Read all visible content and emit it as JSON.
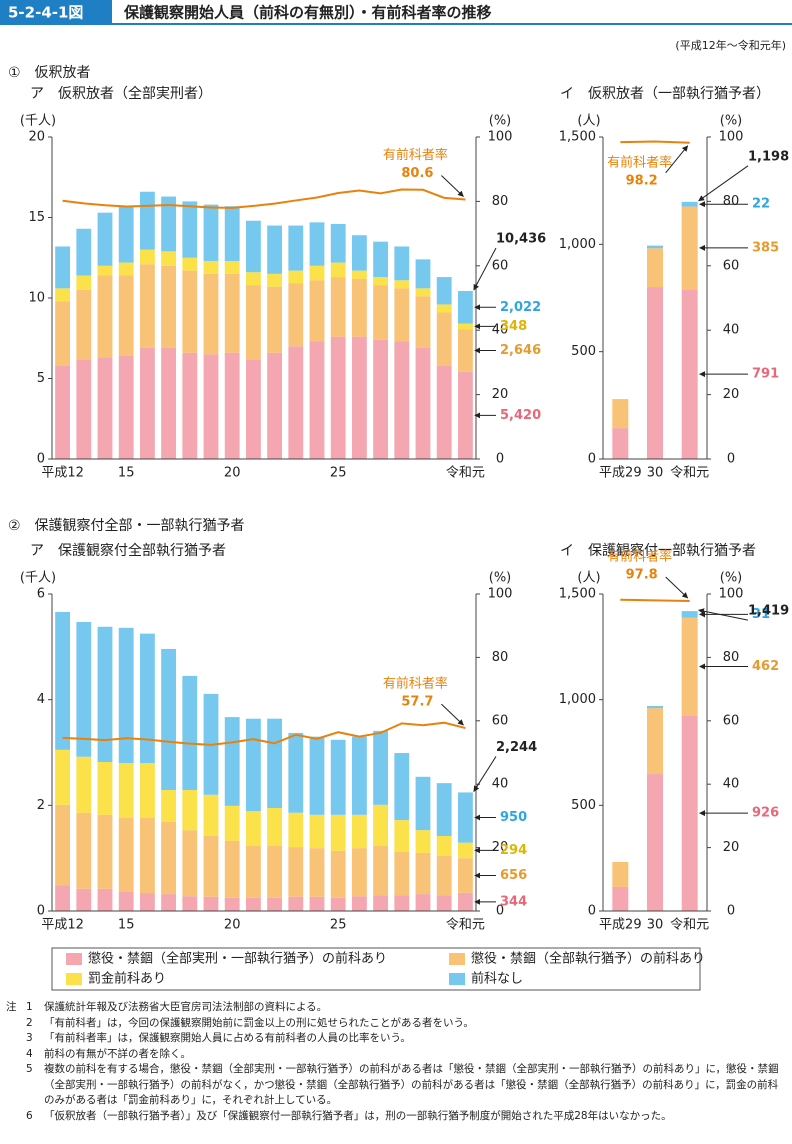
{
  "header": {
    "figure_number": "5-2-4-1図",
    "title": "保護観察開始人員（前科の有無別）・有前科者率の推移",
    "period": "(平成12年～令和元年)"
  },
  "sections": [
    "①　仮釈放者",
    "②　保護観察付全部・一部執行猶予者"
  ],
  "chart_data": [
    {
      "type": "bar",
      "stacked": true,
      "title": "ア　仮釈放者（全部実刑者）",
      "ylabel": "(千人)",
      "y2label": "(%)",
      "categories": [
        "平成12",
        null,
        null,
        "15",
        null,
        null,
        null,
        null,
        "20",
        null,
        null,
        null,
        null,
        "25",
        null,
        null,
        null,
        null,
        null,
        "令和元"
      ],
      "ylim": [
        0,
        20
      ],
      "yticks": [
        0,
        5,
        10,
        15,
        20
      ],
      "y2lim": [
        0,
        100
      ],
      "y2ticks": [
        0,
        20,
        40,
        60,
        80,
        100
      ],
      "data_labels": "last",
      "series": [
        {
          "name": "懲役・禁錮（全部実刑・一部執行猶予）の前科あり",
          "color": "#f4a7b0",
          "label_color": "#e8687a",
          "values": [
            5.8,
            6.2,
            6.3,
            6.4,
            6.9,
            6.9,
            6.6,
            6.5,
            6.6,
            6.2,
            6.6,
            7.0,
            7.3,
            7.6,
            7.6,
            7.4,
            7.3,
            6.9,
            5.8,
            5.42
          ],
          "value_labels": [
            null,
            null,
            null,
            null,
            null,
            null,
            null,
            null,
            null,
            null,
            null,
            null,
            null,
            null,
            null,
            null,
            null,
            null,
            null,
            "5,420"
          ]
        },
        {
          "name": "懲役・禁錮（全部執行猶予）の前科あり",
          "color": "#f8c277",
          "label_color": "#e89a2c",
          "values": [
            4.0,
            4.3,
            5.1,
            5.0,
            5.2,
            5.1,
            5.1,
            5.0,
            4.9,
            4.6,
            4.1,
            3.9,
            3.8,
            3.7,
            3.6,
            3.4,
            3.3,
            3.2,
            3.3,
            2.646
          ],
          "value_labels": [
            null,
            null,
            null,
            null,
            null,
            null,
            null,
            null,
            null,
            null,
            null,
            null,
            null,
            null,
            null,
            null,
            null,
            null,
            null,
            "2,646"
          ]
        },
        {
          "name": "罰金前科あり",
          "color": "#fbe14a",
          "label_color": "#e0b400",
          "values": [
            0.8,
            0.9,
            0.6,
            0.8,
            0.9,
            0.9,
            0.8,
            0.8,
            0.8,
            0.8,
            0.8,
            0.8,
            0.9,
            0.9,
            0.5,
            0.5,
            0.5,
            0.5,
            0.5,
            0.348
          ],
          "value_labels": [
            null,
            null,
            null,
            null,
            null,
            null,
            null,
            null,
            null,
            null,
            null,
            null,
            null,
            null,
            null,
            null,
            null,
            null,
            null,
            "348"
          ]
        },
        {
          "name": "前科なし",
          "color": "#77c8ee",
          "label_color": "#2fa6e0",
          "values": [
            2.6,
            2.9,
            3.3,
            3.5,
            3.6,
            3.4,
            3.5,
            3.5,
            3.4,
            3.2,
            3.0,
            2.8,
            2.7,
            2.4,
            2.2,
            2.2,
            2.1,
            1.8,
            1.7,
            2.022
          ],
          "value_labels": [
            null,
            null,
            null,
            null,
            null,
            null,
            null,
            null,
            null,
            null,
            null,
            null,
            null,
            null,
            null,
            null,
            null,
            null,
            null,
            "2,022"
          ]
        },
        {
          "name": "有前科者率",
          "type": "line",
          "axis": "y2",
          "color": "#e8820c",
          "values": [
            80.2,
            79.4,
            78.8,
            78.4,
            78.6,
            78.9,
            78.5,
            78.1,
            78.0,
            78.6,
            79.3,
            80.3,
            81.2,
            82.6,
            83.4,
            82.5,
            83.7,
            83.6,
            81.1,
            80.6
          ]
        }
      ],
      "total": {
        "value": 10.436,
        "label": "10,436"
      }
    },
    {
      "type": "bar",
      "stacked": true,
      "title": "イ　仮釈放者（一部執行猶予者）",
      "ylabel": "(人)",
      "y2label": "(%)",
      "categories": [
        "平成29",
        "30",
        "令和元"
      ],
      "ylim": [
        0,
        1500
      ],
      "yticks": [
        0,
        500,
        {
          "value": 1000,
          "label": "1,000"
        },
        {
          "value": 1500,
          "label": "1,500"
        }
      ],
      "y2lim": [
        0,
        100
      ],
      "y2ticks": [
        0,
        20,
        40,
        60,
        80,
        100
      ],
      "data_labels": "last",
      "series": [
        {
          "name": "懲役・禁錮（全部実刑・一部執行猶予）の前科あり",
          "color": "#f4a7b0",
          "label_color": "#e8687a",
          "values": [
            144,
            801,
            791
          ]
        },
        {
          "name": "懲役・禁錮（全部執行猶予）の前科あり",
          "color": "#f8c277",
          "label_color": "#e89a2c",
          "values": [
            131,
            181,
            385
          ]
        },
        {
          "name": "罰金前科あり",
          "color": "#fbe14a",
          "label_color": "#e0b400",
          "values": [
            0,
            0,
            0
          ]
        },
        {
          "name": "前科なし",
          "color": "#77c8ee",
          "label_color": "#2fa6e0",
          "values": [
            3,
            12,
            22
          ]
        },
        {
          "name": "有前科者率",
          "type": "line",
          "axis": "y2",
          "color": "#e8820c",
          "values": [
            98.4,
            98.6,
            98.2
          ]
        }
      ],
      "total": {
        "value": 1198,
        "label": "1,198"
      }
    },
    {
      "type": "bar",
      "stacked": true,
      "title": "ア　保護観察付全部執行猶予者",
      "ylabel": "(千人)",
      "y2label": "(%)",
      "categories": [
        "平成12",
        null,
        null,
        "15",
        null,
        null,
        null,
        null,
        "20",
        null,
        null,
        null,
        null,
        "25",
        null,
        null,
        null,
        null,
        null,
        "令和元"
      ],
      "ylim": [
        0,
        6
      ],
      "yticks": [
        0,
        2,
        4,
        6
      ],
      "y2lim": [
        0,
        100
      ],
      "y2ticks": [
        0,
        20,
        40,
        60,
        80,
        100
      ],
      "data_labels": "last",
      "series": [
        {
          "name": "懲役・禁錮（全部実刑・一部執行猶予）の前科あり",
          "color": "#f4a7b0",
          "label_color": "#e8687a",
          "values": [
            0.49,
            0.42,
            0.42,
            0.36,
            0.34,
            0.32,
            0.28,
            0.27,
            0.25,
            0.25,
            0.25,
            0.27,
            0.27,
            0.25,
            0.28,
            0.3,
            0.3,
            0.32,
            0.3,
            0.344
          ],
          "value_labels": [
            null,
            null,
            null,
            null,
            null,
            null,
            null,
            null,
            null,
            null,
            null,
            null,
            null,
            null,
            null,
            null,
            null,
            null,
            null,
            "344"
          ]
        },
        {
          "name": "懲役・禁錮（全部執行猶予）の前科あり",
          "color": "#f8c277",
          "label_color": "#e89a2c",
          "values": [
            1.52,
            1.44,
            1.4,
            1.4,
            1.42,
            1.37,
            1.25,
            1.15,
            1.08,
            0.98,
            0.98,
            0.94,
            0.92,
            0.89,
            0.91,
            0.93,
            0.82,
            0.78,
            0.74,
            0.656
          ],
          "value_labels": [
            null,
            null,
            null,
            null,
            null,
            null,
            null,
            null,
            null,
            null,
            null,
            null,
            null,
            null,
            null,
            null,
            null,
            null,
            null,
            "656"
          ]
        },
        {
          "name": "罰金前科あり",
          "color": "#fbe14a",
          "label_color": "#e0b400",
          "values": [
            1.04,
            1.06,
            1.0,
            1.04,
            1.04,
            0.6,
            0.76,
            0.78,
            0.66,
            0.66,
            0.72,
            0.65,
            0.63,
            0.68,
            0.63,
            0.78,
            0.6,
            0.43,
            0.38,
            0.294
          ],
          "value_labels": [
            null,
            null,
            null,
            null,
            null,
            null,
            null,
            null,
            null,
            null,
            null,
            null,
            null,
            null,
            null,
            null,
            null,
            null,
            null,
            "294"
          ]
        },
        {
          "name": "前科なし",
          "color": "#77c8ee",
          "label_color": "#2fa6e0",
          "values": [
            2.61,
            2.55,
            2.56,
            2.56,
            2.45,
            2.67,
            2.16,
            1.91,
            1.68,
            1.75,
            1.69,
            1.51,
            1.48,
            1.42,
            1.48,
            1.4,
            1.27,
            1.01,
            1.0,
            0.95
          ],
          "value_labels": [
            null,
            null,
            null,
            null,
            null,
            null,
            null,
            null,
            null,
            null,
            null,
            null,
            null,
            null,
            null,
            null,
            null,
            null,
            null,
            "950"
          ]
        },
        {
          "name": "有前科者率",
          "type": "line",
          "axis": "y2",
          "color": "#e8820c",
          "values": [
            54.6,
            54.3,
            53.9,
            54.5,
            54.1,
            53.4,
            52.8,
            52.4,
            53.2,
            54.2,
            52.9,
            55.6,
            54.3,
            56.4,
            55.0,
            56.2,
            59.2,
            58.6,
            59.4,
            57.7
          ]
        }
      ],
      "total": {
        "value": 2.244,
        "label": "2,244"
      }
    },
    {
      "type": "bar",
      "stacked": true,
      "title": "イ　保護観察付一部執行猶予者",
      "ylabel": "(人)",
      "y2label": "(%)",
      "categories": [
        "平成29",
        "30",
        "令和元"
      ],
      "ylim": [
        0,
        1500
      ],
      "yticks": [
        0,
        500,
        {
          "value": 1000,
          "label": "1,000"
        },
        {
          "value": 1500,
          "label": "1,500"
        }
      ],
      "y2lim": [
        0,
        100
      ],
      "y2ticks": [
        0,
        20,
        40,
        60,
        80,
        100
      ],
      "data_labels": "last",
      "series": [
        {
          "name": "懲役・禁錮（全部実刑・一部執行猶予）の前科あり",
          "color": "#f4a7b0",
          "label_color": "#e8687a",
          "values": [
            114,
            648,
            926
          ]
        },
        {
          "name": "懲役・禁錮（全部執行猶予）の前科あり",
          "color": "#f8c277",
          "label_color": "#e89a2c",
          "values": [
            118,
            312,
            462
          ]
        },
        {
          "name": "罰金前科あり",
          "color": "#fbe14a",
          "label_color": "#e0b400",
          "values": [
            0,
            0,
            0
          ]
        },
        {
          "name": "前科なし",
          "color": "#77c8ee",
          "label_color": "#2fa6e0",
          "values": [
            0,
            10,
            31
          ]
        },
        {
          "name": "有前科者率",
          "type": "line",
          "axis": "y2",
          "color": "#e8820c",
          "values": [
            98.2,
            98.0,
            97.8
          ]
        }
      ],
      "total": {
        "value": 1419,
        "label": "1,419"
      }
    }
  ],
  "notes": {
    "label": "注",
    "items": [
      {
        "number": "1",
        "text": "保護統計年報及び法務省大臣官房司法法制部の資料による。"
      },
      {
        "number": "2",
        "text": "「有前科者」は，今回の保護観察開始前に罰金以上の刑に処せられたことがある者をいう。"
      },
      {
        "number": "3",
        "text": "「有前科者率」は，保護観察開始人員に占める有前科者の人員の比率をいう。"
      },
      {
        "number": "4",
        "text": "前科の有無が不詳の者を除く。"
      },
      {
        "number": "5",
        "text": "複数の前科を有する場合，懲役・禁錮（全部実刑・一部執行猶予）の前科がある者は「懲役・禁錮（全部実刑・一部執行猶予）の前科あり」に，懲役・禁錮（全部実刑・一部執行猶予）の前科がなく，かつ懲役・禁錮（全部執行猶予）の前科がある者は「懲役・禁錮（全部執行猶予）の前科あり」に，罰金の前科のみがある者は「罰金前科あり」に，それぞれ計上している。"
      },
      {
        "number": "6",
        "text": "「仮釈放者（一部執行猶予者）」及び「保護観察付一部執行猶予者」は，刑の一部執行猶予制度が開始された平成28年はいなかった。"
      }
    ]
  }
}
